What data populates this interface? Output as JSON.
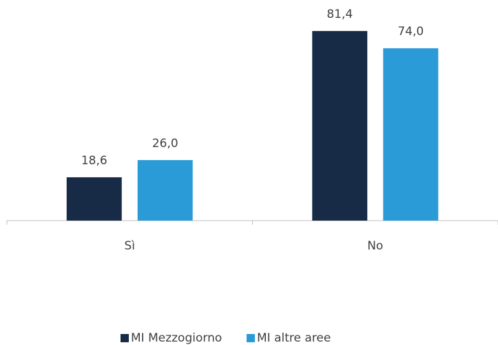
{
  "chart_data": {
    "type": "bar",
    "categories": [
      "Sì",
      "No"
    ],
    "series": [
      {
        "name": "MI Mezzogiorno",
        "color": "#172a46",
        "values": [
          18.6,
          81.4
        ],
        "value_labels": [
          "18,6",
          "81,4"
        ]
      },
      {
        "name": "MI altre aree",
        "color": "#2b9bd8",
        "values": [
          26.0,
          74.0
        ],
        "value_labels": [
          "26,0",
          "74,0"
        ]
      }
    ],
    "ylim": [
      0,
      90
    ],
    "legend": "bottom"
  }
}
